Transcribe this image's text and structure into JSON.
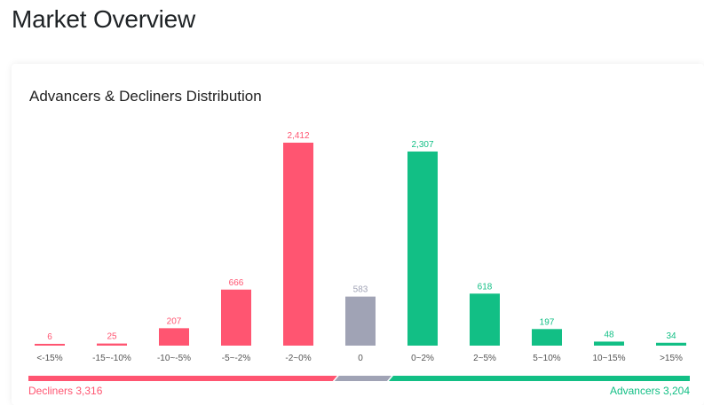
{
  "page_title": "Market Overview",
  "card_title": "Advancers & Decliners Distribution",
  "colors": {
    "decline": "#ff5571",
    "neutral": "#a0a3b5",
    "advance": "#12bf85"
  },
  "summary": {
    "decliners_label": "Decliners 3,316",
    "advancers_label": "Advancers 3,204",
    "decliners": 3316,
    "unchanged": 583,
    "advancers": 3204
  },
  "chart_data": {
    "type": "bar",
    "title": "Advancers & Decliners Distribution",
    "xlabel": "",
    "ylabel": "",
    "categories": [
      "<-15%",
      "-15~-10%",
      "-10~-5%",
      "-5~-2%",
      "-2~0%",
      "0",
      "0~2%",
      "2~5%",
      "5~10%",
      "10~15%",
      ">15%"
    ],
    "values": [
      6,
      25,
      207,
      666,
      2412,
      583,
      2307,
      618,
      197,
      48,
      34
    ],
    "value_labels": [
      "6",
      "25",
      "207",
      "666",
      "2,412",
      "583",
      "2,307",
      "618",
      "197",
      "48",
      "34"
    ],
    "bar_colors": [
      "decline",
      "decline",
      "decline",
      "decline",
      "decline",
      "neutral",
      "advance",
      "advance",
      "advance",
      "advance",
      "advance"
    ],
    "ylim": [
      0,
      2412
    ],
    "grid": false,
    "legend": "none"
  }
}
